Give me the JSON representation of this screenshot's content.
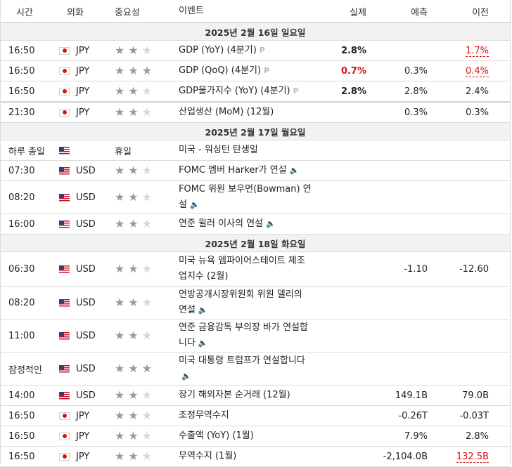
{
  "header": {
    "time": "시간",
    "currency": "외화",
    "importance": "중요성",
    "event": "이벤트",
    "actual": "실제",
    "forecast": "예측",
    "previous": "이전"
  },
  "days": [
    {
      "label": "2025년 2월 16일 일요일",
      "rows": [
        {
          "time": "16:50",
          "flag": "jp",
          "currency": "JPY",
          "stars": 2,
          "event": "GDP (YoY) (4분기)",
          "prelim": "P",
          "actual": "2.8%",
          "actual_color": "",
          "forecast": "",
          "previous": "1.7%",
          "previous_style": "redline"
        },
        {
          "time": "16:50",
          "flag": "jp",
          "currency": "JPY",
          "stars": 3,
          "event": "GDP (QoQ) (4분기)",
          "prelim": "P",
          "actual": "0.7%",
          "actual_color": "red",
          "forecast": "0.3%",
          "previous": "0.4%",
          "previous_style": "redline"
        },
        {
          "time": "16:50",
          "flag": "jp",
          "currency": "JPY",
          "stars": 2,
          "event": "GDP물가지수 (YoY) (4분기)",
          "prelim": "P",
          "actual": "2.8%",
          "actual_color": "",
          "forecast": "2.8%",
          "previous": "2.4%",
          "previous_style": ""
        },
        {
          "time": "21:30",
          "flag": "jp",
          "currency": "JPY",
          "stars": 2,
          "event": "산업생산 (MoM) (12월)",
          "prelim": "",
          "actual": "",
          "actual_color": "",
          "forecast": "0.3%",
          "previous": "0.3%",
          "previous_style": ""
        }
      ]
    },
    {
      "label": "2025년 2월 17일 월요일",
      "rows": [
        {
          "time": "하루 종일",
          "flag": "us",
          "currency": "",
          "stars": 0,
          "holiday": "휴일",
          "event": "미국 - 워싱턴 탄생일",
          "actual": "",
          "forecast": "",
          "previous": ""
        },
        {
          "time": "07:30",
          "flag": "us",
          "currency": "USD",
          "stars": 2,
          "event": "FOMC 멤버 Harker가 연설",
          "speaker": true,
          "actual": "",
          "forecast": "",
          "previous": ""
        },
        {
          "time": "08:20",
          "flag": "us",
          "currency": "USD",
          "stars": 2,
          "event": "FOMC 위원 보우먼(Bowman) 연설",
          "speaker": true,
          "actual": "",
          "forecast": "",
          "previous": ""
        },
        {
          "time": "16:00",
          "flag": "us",
          "currency": "USD",
          "stars": 2,
          "event": "연준 윌러 이사의 연설",
          "speaker": true,
          "actual": "",
          "forecast": "",
          "previous": ""
        }
      ]
    },
    {
      "label": "2025년 2월 18일 화요일",
      "rows": [
        {
          "time": "06:30",
          "flag": "us",
          "currency": "USD",
          "stars": 2,
          "event": "미국 뉴욕 엠파이어스테이트 제조업지수 (2월)",
          "actual": "",
          "forecast": "-1.10",
          "previous": "-12.60"
        },
        {
          "time": "08:20",
          "flag": "us",
          "currency": "USD",
          "stars": 2,
          "event": "연방공개시장위원회 위원 델리의 연설",
          "speaker": true,
          "actual": "",
          "forecast": "",
          "previous": ""
        },
        {
          "time": "11:00",
          "flag": "us",
          "currency": "USD",
          "stars": 2,
          "event": "연준 금융감독 부의장 바가 연설합니다",
          "speaker": true,
          "actual": "",
          "forecast": "",
          "previous": ""
        },
        {
          "time": "잠정적인",
          "flag": "us",
          "currency": "USD",
          "stars": 3,
          "event": "미국 대통령 트럼프가 연설합니다",
          "speaker": true,
          "actual": "",
          "forecast": "",
          "previous": ""
        },
        {
          "time": "14:00",
          "flag": "us",
          "currency": "USD",
          "stars": 2,
          "event": "장기 해외자본 순거래 (12월)",
          "actual": "",
          "forecast": "149.1B",
          "previous": "79.0B"
        },
        {
          "time": "16:50",
          "flag": "jp",
          "currency": "JPY",
          "stars": 2,
          "event": "조정무역수지",
          "actual": "",
          "forecast": "-0.26T",
          "previous": "-0.03T"
        },
        {
          "time": "16:50",
          "flag": "jp",
          "currency": "JPY",
          "stars": 2,
          "event": "수출액 (YoY) (1월)",
          "actual": "",
          "forecast": "7.9%",
          "previous": "2.8%"
        },
        {
          "time": "16:50",
          "flag": "jp",
          "currency": "JPY",
          "stars": 2,
          "event": "무역수지 (1월)",
          "actual": "",
          "forecast": "-2,104.0B",
          "previous": "132.5B",
          "previous_style": "redline"
        }
      ]
    }
  ],
  "icons": {
    "star": "★",
    "speaker": "🔈"
  }
}
